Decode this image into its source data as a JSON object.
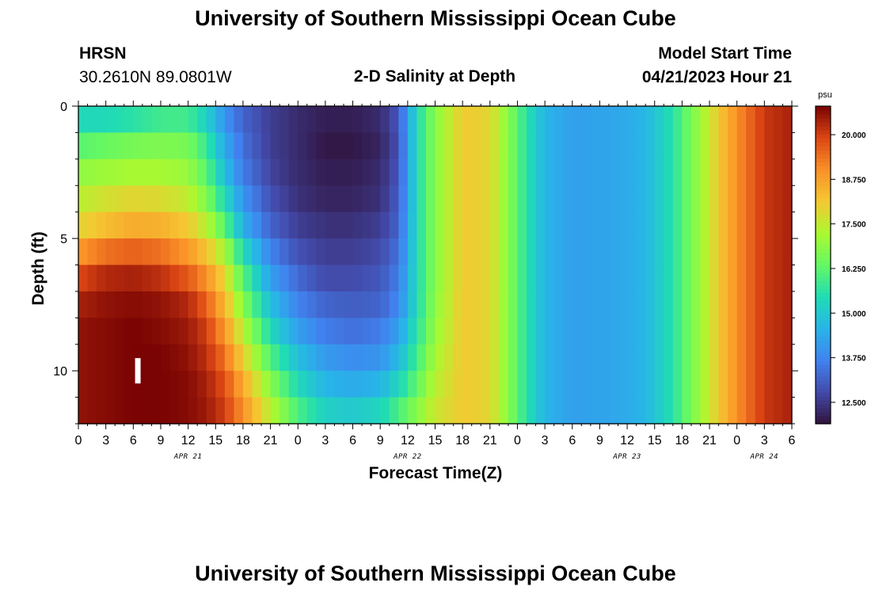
{
  "header": {
    "title": "University of Southern Mississippi Ocean Cube",
    "station": "HRSN",
    "coords": "30.2610N  89.0801W",
    "plot_title": "2-D Salinity at Depth",
    "model_start_label": "Model Start Time",
    "model_start_value": "04/21/2023 Hour 21"
  },
  "footer": {
    "title": "University of Southern Mississippi Ocean Cube"
  },
  "colors": {
    "background": "#ffffff",
    "text": "#000000",
    "marker": "#ffffff"
  },
  "chart_data": {
    "type": "heatmap",
    "title": "2-D Salinity at Depth",
    "xlabel": "Forecast Time(Z)",
    "ylabel": "Depth (ft)",
    "colorbar_unit": "psu",
    "colorbar_ticks": [
      "20.000",
      "18.750",
      "17.500",
      "16.250",
      "15.000",
      "13.750",
      "12.500"
    ],
    "colorbar_values": [
      20.0,
      18.75,
      17.5,
      16.25,
      15.0,
      13.75,
      12.5
    ],
    "clim": [
      11.9,
      20.8
    ],
    "xlim_hours": [
      0,
      78
    ],
    "ylim": [
      0,
      12
    ],
    "y_inverted": true,
    "x_tick_labels": [
      "0",
      "3",
      "6",
      "9",
      "12",
      "15",
      "18",
      "21",
      "0",
      "3",
      "6",
      "9",
      "12",
      "15",
      "18",
      "21",
      "0",
      "3",
      "6",
      "9",
      "12",
      "15",
      "18",
      "21",
      "0",
      "3",
      "6"
    ],
    "y_tick_labels": [
      "0",
      "5",
      "10"
    ],
    "y_tick_values": [
      0,
      5,
      10
    ],
    "date_labels": [
      "APR 21",
      "APR 22",
      "APR 23",
      "APR 24"
    ],
    "date_label_hours": [
      12,
      36,
      60,
      75
    ],
    "marker": {
      "x_hours": 6.5,
      "depth_ft": 10
    },
    "depth_levels": [
      0.5,
      1.5,
      2.5,
      3.5,
      4.5,
      5.5,
      6.5,
      7.5,
      8.5,
      9.5,
      10.5,
      11.5
    ],
    "salinity_profiles": [
      {
        "hour": 0,
        "values": [
          15.4,
          16.2,
          16.9,
          17.4,
          17.9,
          18.9,
          19.9,
          20.4,
          20.6,
          20.6,
          20.6,
          20.6
        ]
      },
      {
        "hour": 3,
        "values": [
          15.4,
          16.4,
          17.1,
          17.7,
          18.3,
          19.4,
          20.3,
          20.6,
          20.7,
          20.7,
          20.7,
          20.7
        ]
      },
      {
        "hour": 6,
        "values": [
          15.6,
          16.6,
          17.2,
          17.9,
          18.6,
          19.6,
          20.4,
          20.7,
          20.8,
          20.8,
          20.8,
          20.8
        ]
      },
      {
        "hour": 9,
        "values": [
          15.9,
          16.7,
          17.2,
          17.8,
          18.5,
          19.4,
          20.2,
          20.6,
          20.7,
          20.8,
          20.8,
          20.8
        ]
      },
      {
        "hour": 12,
        "values": [
          15.9,
          16.6,
          17.0,
          17.5,
          18.1,
          18.9,
          19.7,
          20.3,
          20.5,
          20.6,
          20.7,
          20.7
        ]
      },
      {
        "hour": 14,
        "values": [
          15.2,
          15.8,
          16.2,
          16.7,
          17.4,
          18.2,
          19.0,
          19.6,
          20.0,
          20.2,
          20.4,
          20.5
        ]
      },
      {
        "hour": 16,
        "values": [
          14.0,
          14.4,
          14.8,
          15.4,
          16.2,
          17.2,
          17.9,
          18.4,
          18.9,
          19.4,
          19.8,
          20.0
        ]
      },
      {
        "hour": 18,
        "values": [
          13.2,
          13.4,
          13.6,
          14.0,
          14.5,
          15.4,
          16.2,
          16.8,
          17.4,
          18.0,
          18.6,
          19.0
        ]
      },
      {
        "hour": 21,
        "values": [
          12.6,
          12.6,
          12.7,
          12.9,
          13.2,
          13.7,
          14.2,
          14.8,
          15.4,
          16.1,
          16.8,
          17.4
        ]
      },
      {
        "hour": 24,
        "values": [
          12.3,
          12.3,
          12.3,
          12.4,
          12.6,
          12.9,
          13.3,
          13.7,
          14.2,
          14.8,
          15.4,
          16.0
        ]
      },
      {
        "hour": 27,
        "values": [
          12.1,
          12.0,
          12.1,
          12.2,
          12.4,
          12.6,
          12.8,
          13.2,
          13.6,
          14.1,
          14.6,
          15.2
        ]
      },
      {
        "hour": 30,
        "values": [
          12.1,
          12.0,
          12.1,
          12.2,
          12.4,
          12.6,
          12.8,
          13.1,
          13.4,
          13.9,
          14.4,
          15.0
        ]
      },
      {
        "hour": 33,
        "values": [
          12.3,
          12.2,
          12.3,
          12.4,
          12.6,
          12.8,
          13.0,
          13.2,
          13.6,
          14.0,
          14.6,
          15.3
        ]
      },
      {
        "hour": 35,
        "values": [
          13.0,
          12.9,
          13.0,
          13.1,
          13.2,
          13.4,
          13.6,
          13.8,
          14.2,
          14.7,
          15.3,
          16.0
        ]
      },
      {
        "hour": 36,
        "values": [
          14.2,
          14.2,
          14.2,
          14.2,
          14.3,
          14.4,
          14.5,
          14.6,
          14.9,
          15.3,
          15.8,
          16.4
        ]
      },
      {
        "hour": 37,
        "values": [
          15.4,
          15.4,
          15.4,
          15.4,
          15.4,
          15.4,
          15.4,
          15.4,
          15.6,
          15.9,
          16.3,
          16.8
        ]
      },
      {
        "hour": 39,
        "values": [
          16.8,
          16.8,
          16.8,
          16.8,
          16.8,
          16.8,
          16.8,
          16.9,
          17.0,
          17.2,
          17.4,
          17.6
        ]
      },
      {
        "hour": 42,
        "values": [
          18.1,
          18.1,
          18.1,
          18.1,
          18.1,
          18.1,
          18.1,
          18.1,
          18.1,
          18.1,
          18.1,
          18.1
        ]
      },
      {
        "hour": 45,
        "values": [
          17.9,
          17.9,
          17.9,
          17.9,
          17.9,
          17.9,
          17.9,
          17.9,
          17.9,
          17.9,
          17.9,
          17.9
        ]
      },
      {
        "hour": 47,
        "values": [
          16.8,
          16.8,
          16.8,
          16.8,
          16.8,
          16.8,
          16.8,
          16.8,
          16.8,
          16.8,
          16.8,
          16.8
        ]
      },
      {
        "hour": 49,
        "values": [
          15.6,
          15.6,
          15.6,
          15.6,
          15.6,
          15.6,
          15.6,
          15.6,
          15.6,
          15.6,
          15.6,
          15.6
        ]
      },
      {
        "hour": 51,
        "values": [
          14.6,
          14.6,
          14.6,
          14.6,
          14.6,
          14.6,
          14.6,
          14.6,
          14.6,
          14.6,
          14.6,
          14.6
        ]
      },
      {
        "hour": 54,
        "values": [
          14.2,
          14.2,
          14.2,
          14.2,
          14.2,
          14.2,
          14.2,
          14.2,
          14.2,
          14.2,
          14.2,
          14.2
        ]
      },
      {
        "hour": 58,
        "values": [
          14.3,
          14.3,
          14.3,
          14.3,
          14.3,
          14.3,
          14.3,
          14.3,
          14.3,
          14.3,
          14.3,
          14.3
        ]
      },
      {
        "hour": 61,
        "values": [
          14.5,
          14.5,
          14.5,
          14.5,
          14.5,
          14.5,
          14.5,
          14.5,
          14.5,
          14.5,
          14.5,
          14.5
        ]
      },
      {
        "hour": 63,
        "values": [
          14.9,
          14.9,
          14.9,
          14.9,
          14.9,
          14.9,
          14.9,
          14.9,
          14.9,
          14.9,
          14.9,
          14.9
        ]
      },
      {
        "hour": 65,
        "values": [
          15.6,
          15.6,
          15.6,
          15.6,
          15.6,
          15.6,
          15.6,
          15.6,
          15.6,
          15.6,
          15.6,
          15.6
        ]
      },
      {
        "hour": 67,
        "values": [
          16.6,
          16.6,
          16.6,
          16.6,
          16.6,
          16.6,
          16.6,
          16.6,
          16.6,
          16.6,
          16.6,
          16.6
        ]
      },
      {
        "hour": 69,
        "values": [
          17.6,
          17.6,
          17.6,
          17.6,
          17.6,
          17.6,
          17.6,
          17.6,
          17.6,
          17.6,
          17.6,
          17.6
        ]
      },
      {
        "hour": 71,
        "values": [
          18.6,
          18.6,
          18.6,
          18.6,
          18.6,
          18.6,
          18.6,
          18.6,
          18.6,
          18.6,
          18.6,
          18.6
        ]
      },
      {
        "hour": 73,
        "values": [
          19.4,
          19.4,
          19.4,
          19.4,
          19.4,
          19.4,
          19.4,
          19.4,
          19.4,
          19.4,
          19.4,
          19.4
        ]
      },
      {
        "hour": 75,
        "values": [
          20.1,
          20.1,
          20.1,
          20.1,
          20.1,
          20.1,
          20.1,
          20.1,
          20.1,
          20.1,
          20.1,
          20.1
        ]
      },
      {
        "hour": 78,
        "values": [
          20.4,
          20.4,
          20.4,
          20.4,
          20.4,
          20.4,
          20.4,
          20.4,
          20.4,
          20.4,
          20.4,
          20.4
        ]
      }
    ]
  }
}
